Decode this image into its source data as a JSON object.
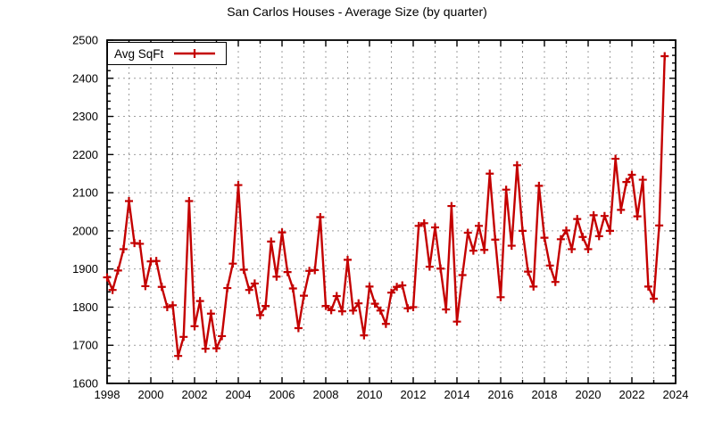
{
  "title": "San Carlos Houses - Average Size (by quarter)",
  "legend": {
    "label": "Avg SqFt"
  },
  "colors": {
    "line": "#c40000",
    "grid": "#9e9e9e",
    "axis": "#000000",
    "background": "#ffffff",
    "text": "#000000"
  },
  "chart_data": {
    "type": "line",
    "title": "San Carlos Houses - Average Size (by quarter)",
    "series": [
      {
        "name": "Avg SqFt",
        "marker": "plus",
        "x_start": 1998.0,
        "x_step": 0.25,
        "x_unit": "quarter",
        "values": [
          1878,
          1845,
          1896,
          1952,
          2078,
          1968,
          1966,
          1855,
          1920,
          1921,
          1853,
          1800,
          1805,
          1672,
          1722,
          2078,
          1750,
          1816,
          1691,
          1783,
          1692,
          1724,
          1850,
          1914,
          2120,
          1898,
          1845,
          1862,
          1779,
          1803,
          1972,
          1880,
          1996,
          1892,
          1849,
          1745,
          1830,
          1895,
          1897,
          2036,
          1803,
          1792,
          1829,
          1789,
          1924,
          1791,
          1810,
          1726,
          1854,
          1809,
          1791,
          1756,
          1838,
          1853,
          1857,
          1797,
          1800,
          2013,
          2020,
          1906,
          2009,
          1901,
          1794,
          2065,
          1762,
          1884,
          1995,
          1948,
          2013,
          1950,
          2150,
          1977,
          1826,
          2108,
          1961,
          2172,
          2000,
          1893,
          1854,
          2118,
          1982,
          1909,
          1866,
          1978,
          2001,
          1952,
          2031,
          1984,
          1952,
          2041,
          1986,
          2039,
          2000,
          2189,
          2055,
          2128,
          2147,
          2038,
          2134,
          1854,
          1822,
          2014,
          2458
        ]
      }
    ],
    "x_axis": {
      "min": 1998,
      "max": 2024,
      "label_step_years": 2,
      "tick_labels": [
        "1998",
        "2000",
        "2002",
        "2004",
        "2006",
        "2008",
        "2010",
        "2012",
        "2014",
        "2016",
        "2018",
        "2020",
        "2022",
        "2024"
      ],
      "minor_tick_every_years": 1,
      "grid": true
    },
    "y_axis": {
      "min": 1600,
      "max": 2500,
      "step": 100,
      "tick_labels": [
        "1600",
        "1700",
        "1800",
        "1900",
        "2000",
        "2100",
        "2200",
        "2300",
        "2400",
        "2500"
      ],
      "minor_tick_step": 20,
      "grid": true
    },
    "legend_position": "top-left-inside-box"
  }
}
